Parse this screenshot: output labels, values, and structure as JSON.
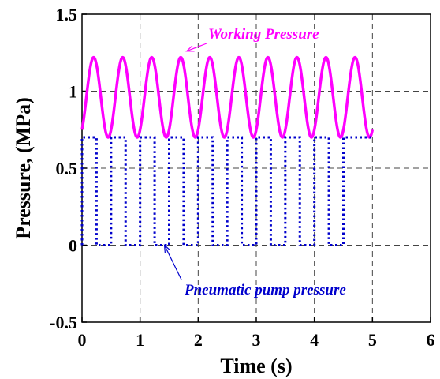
{
  "chart_data": {
    "type": "line",
    "xlabel": "Time (s)",
    "ylabel": "Pressure, (MPa)",
    "xlim": [
      0,
      6
    ],
    "ylim": [
      -0.5,
      1.5
    ],
    "xticks": [
      0,
      1,
      2,
      3,
      4,
      5,
      6
    ],
    "xtick_labels": [
      "0",
      "1",
      "2",
      "3",
      "4",
      "5",
      "6"
    ],
    "yticks": [
      -0.5,
      0,
      0.5,
      1,
      1.5
    ],
    "ytick_labels": [
      "-0.5",
      "0",
      "0.5",
      "1",
      "1.5"
    ],
    "grid": true,
    "series": [
      {
        "name": "Working Pressure",
        "color": "#ff00ff",
        "style": "solid",
        "shape": "sinusoid",
        "t_start": 0,
        "t_end": 5,
        "min": 0.7,
        "max": 1.22,
        "start_value": 0.62,
        "period": 0.5,
        "first_peak_time": 0.2
      },
      {
        "name": "Pneumatic pump pressure",
        "color": "#0000cc",
        "style": "dotted",
        "shape": "square_wave",
        "t_start": 0,
        "t_end": 5,
        "low": 0,
        "high": 0.7,
        "period": 0.5,
        "high_intervals": [
          [
            0,
            0.25
          ],
          [
            0.5,
            0.75
          ],
          [
            1.0,
            1.25
          ],
          [
            1.5,
            1.75
          ],
          [
            2.0,
            2.25
          ],
          [
            2.5,
            2.75
          ],
          [
            3.0,
            3.25
          ],
          [
            3.5,
            3.75
          ],
          [
            4.0,
            4.25
          ],
          [
            4.5,
            5.0
          ]
        ]
      }
    ],
    "annotations": [
      {
        "text": "Working Pressure",
        "color": "#ff00ff",
        "arrow_to": [
          1.8,
          1.26
        ]
      },
      {
        "text": "Pneumatic pump pressure",
        "color": "#0000cc",
        "arrow_to": [
          1.42,
          0.0
        ]
      }
    ]
  }
}
